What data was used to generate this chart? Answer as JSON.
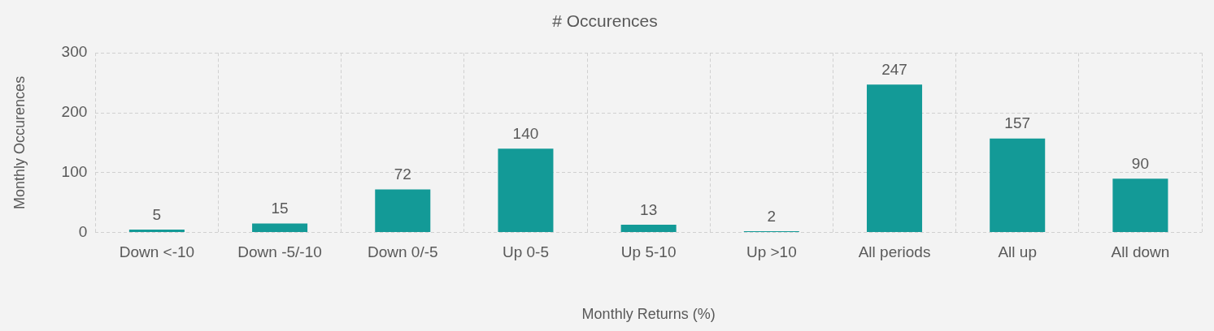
{
  "chart_data": {
    "type": "bar",
    "title": "# Occurences",
    "xlabel": "Monthly Returns (%)",
    "ylabel": "Monthly Occurences",
    "categories": [
      "Down <-10",
      "Down -5/-10",
      "Down 0/-5",
      "Up 0-5",
      "Up 5-10",
      "Up >10",
      "All periods",
      "All up",
      "All down"
    ],
    "values": [
      5,
      15,
      72,
      140,
      13,
      2,
      247,
      157,
      90
    ],
    "color": "#139a97",
    "ylim": [
      0,
      300
    ],
    "yticks": [
      0,
      100,
      200,
      300
    ],
    "grid": true,
    "data_labels": true
  }
}
